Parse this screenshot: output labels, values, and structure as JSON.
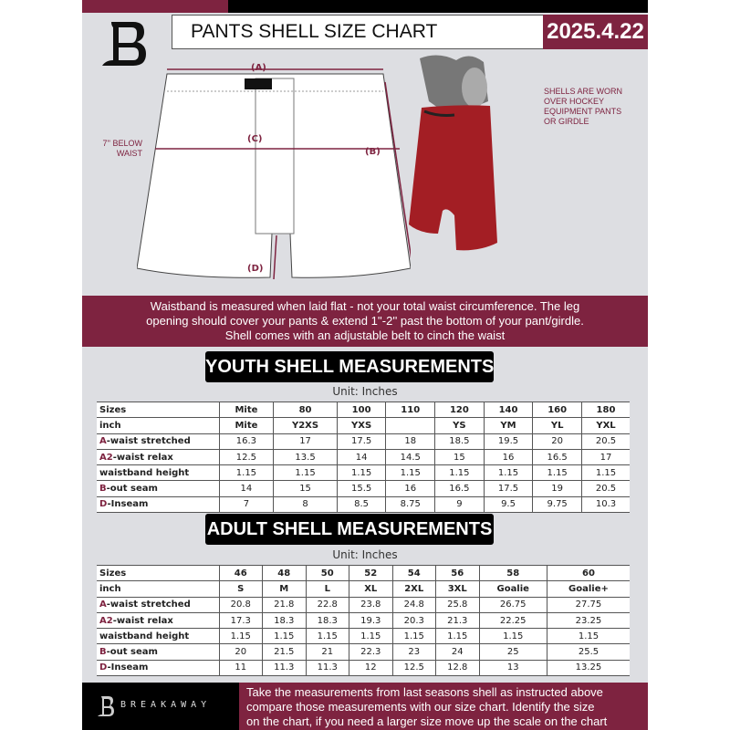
{
  "header": {
    "title": "PANTS SHELL SIZE CHART",
    "date": "2025.4.22"
  },
  "diagram": {
    "label_a": "(A)",
    "label_b": "(B)",
    "label_c": "(C)",
    "label_d": "(D)",
    "below_waist_note": [
      "7'' BELOW",
      "WAIST"
    ],
    "worn_note": [
      "SHELLS ARE WORN",
      "OVER HOCKEY",
      "EQUIPMENT PANTS",
      "OR GIRDLE"
    ]
  },
  "banner": {
    "lines": [
      "Waistband is measured when laid flat - not your total waist circumference. The leg",
      "opening should cover your pants & extend 1''-2'' past the bottom of your pant/girdle.",
      "Shell comes with an adjustable belt to cinch the waist"
    ]
  },
  "youth": {
    "title": "YOUTH SHELL MEASUREMENTS",
    "unit": "Unit: Inches",
    "rows": [
      {
        "key": "",
        "label": "Sizes",
        "values": [
          "Mite",
          "80",
          "100",
          "110",
          "120",
          "140",
          "160",
          "180"
        ]
      },
      {
        "key": "",
        "label": "inch",
        "values": [
          "Mite",
          "Y2XS",
          "YXS",
          "",
          "YS",
          "YM",
          "YL",
          "YXL"
        ]
      },
      {
        "key": "A",
        "label": "-waist stretched",
        "values": [
          "16.3",
          "17",
          "17.5",
          "18",
          "18.5",
          "19.5",
          "20",
          "20.5"
        ]
      },
      {
        "key": "A2",
        "label": "-waist relax",
        "values": [
          "12.5",
          "13.5",
          "14",
          "14.5",
          "15",
          "16",
          "16.5",
          "17"
        ]
      },
      {
        "key": "",
        "label": "waistband height",
        "values": [
          "1.15",
          "1.15",
          "1.15",
          "1.15",
          "1.15",
          "1.15",
          "1.15",
          "1.15"
        ]
      },
      {
        "key": "B",
        "label": "-out seam",
        "values": [
          "14",
          "15",
          "15.5",
          "16",
          "16.5",
          "17.5",
          "19",
          "20.5"
        ]
      },
      {
        "key": "D",
        "label": "-Inseam",
        "values": [
          "7",
          "8",
          "8.5",
          "8.75",
          "9",
          "9.5",
          "9.75",
          "10.3"
        ]
      }
    ]
  },
  "adult": {
    "title": "ADULT SHELL MEASUREMENTS",
    "unit": "Unit: Inches",
    "rows": [
      {
        "key": "",
        "label": "Sizes",
        "values": [
          "46",
          "48",
          "50",
          "52",
          "54",
          "56",
          "58",
          "60"
        ]
      },
      {
        "key": "",
        "label": "inch",
        "values": [
          "S",
          "M",
          "L",
          "XL",
          "2XL",
          "3XL",
          "Goalie",
          "Goalie+"
        ]
      },
      {
        "key": "A",
        "label": "-waist stretched",
        "values": [
          "20.8",
          "21.8",
          "22.8",
          "23.8",
          "24.8",
          "25.8",
          "26.75",
          "27.75"
        ]
      },
      {
        "key": "A2",
        "label": "-waist relax",
        "values": [
          "17.3",
          "18.3",
          "18.3",
          "19.3",
          "20.3",
          "21.3",
          "22.25",
          "23.25"
        ]
      },
      {
        "key": "",
        "label": "waistband height",
        "values": [
          "1.15",
          "1.15",
          "1.15",
          "1.15",
          "1.15",
          "1.15",
          "1.15",
          "1.15"
        ]
      },
      {
        "key": "B",
        "label": "-out seam",
        "values": [
          "20",
          "21.5",
          "21",
          "22.3",
          "23",
          "24",
          "25",
          "25.5"
        ]
      },
      {
        "key": "D",
        "label": "-Inseam",
        "values": [
          "11",
          "11.3",
          "11.3",
          "12",
          "12.5",
          "12.8",
          "13",
          "13.25"
        ]
      }
    ]
  },
  "footer": {
    "brand": "BREAKAWAY",
    "lines": [
      "Take the measurements from last seasons shell as instructed above",
      "compare those measurements  with our size chart. Identify the size",
      "on the chart, if you need a larger size move up the scale on the chart"
    ]
  },
  "colors": {
    "accent": "#7e2340",
    "dark": "#000000",
    "background": "#dddee2"
  }
}
